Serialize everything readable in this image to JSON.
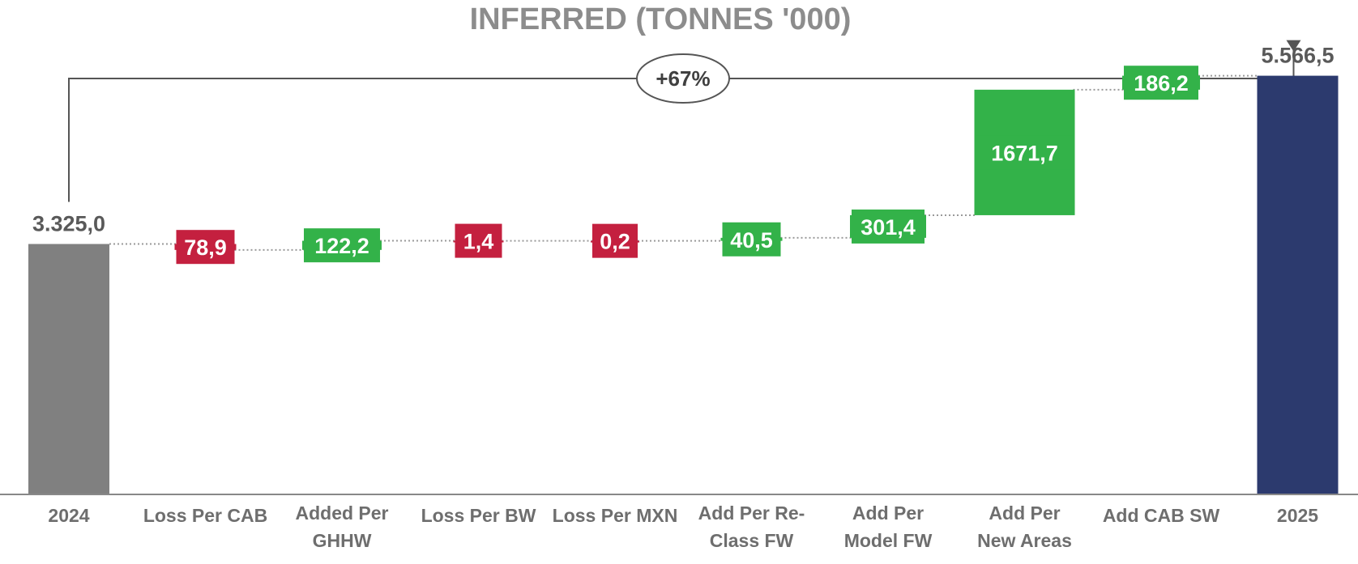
{
  "chart_data": {
    "type": "bar",
    "subtype": "waterfall",
    "title": "INFERRED (TONNES '000)",
    "xlabel": "",
    "ylabel": "",
    "ylim": [
      0,
      5950
    ],
    "grid": false,
    "legend": "none",
    "categories": [
      "2024",
      "Loss Per CAB",
      "Added Per GHHW",
      "Loss Per BW",
      "Loss Per MXN",
      "Add Per Re-Class FW",
      "Add Per Model FW",
      "Add Per New Areas",
      "Add CAB SW",
      "2025"
    ],
    "category_lines": [
      [
        "2024"
      ],
      [
        "Loss Per CAB"
      ],
      [
        "Added Per",
        "GHHW"
      ],
      [
        "Loss Per BW"
      ],
      [
        "Loss Per MXN"
      ],
      [
        "Add Per Re-",
        "Class FW"
      ],
      [
        "Add Per",
        "Model FW"
      ],
      [
        "Add Per",
        "New Areas"
      ],
      [
        "Add CAB SW"
      ],
      [
        "2025"
      ]
    ],
    "steps": [
      {
        "kind": "total",
        "value": 3325.0,
        "label": "3.325,0"
      },
      {
        "kind": "decrease",
        "value": 78.9,
        "label": "78,9"
      },
      {
        "kind": "increase",
        "value": 122.2,
        "label": "122,2"
      },
      {
        "kind": "decrease",
        "value": 1.4,
        "label": "1,4"
      },
      {
        "kind": "decrease",
        "value": 0.2,
        "label": "0,2"
      },
      {
        "kind": "increase",
        "value": 40.5,
        "label": "40,5"
      },
      {
        "kind": "increase",
        "value": 301.4,
        "label": "301,4"
      },
      {
        "kind": "increase",
        "value": 1671.7,
        "label": "1671,7"
      },
      {
        "kind": "increase",
        "value": 186.2,
        "label": "186,2"
      },
      {
        "kind": "total",
        "value": 5566.5,
        "label": "5.566,5"
      }
    ],
    "annotation": {
      "text": "+67%",
      "from": "2024",
      "to": "2025"
    },
    "colors": {
      "start_total": "#808080",
      "end_total": "#2c3a6e",
      "increase": "#33b249",
      "decrease": "#c4203f",
      "connector": "#9a9a9a",
      "axis": "#888888",
      "annotation_line": "#555555"
    }
  }
}
